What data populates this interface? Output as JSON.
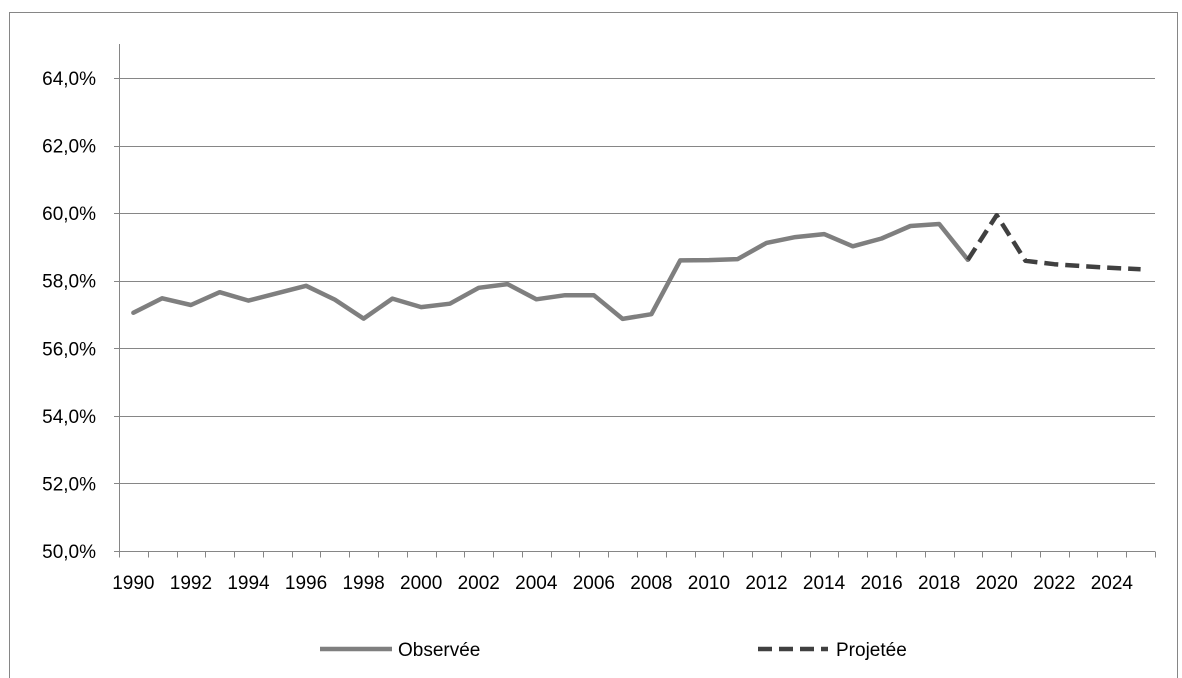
{
  "chart_data": {
    "type": "line",
    "title": "",
    "xlabel": "",
    "ylabel": "",
    "ylim": [
      0.5,
      0.64
    ],
    "y_ticks": [
      "50,0%",
      "52,0%",
      "54,0%",
      "56,0%",
      "58,0%",
      "60,0%",
      "62,0%",
      "64,0%"
    ],
    "y_tick_values": [
      0.5,
      0.52,
      0.54,
      0.56,
      0.58,
      0.6,
      0.62,
      0.64
    ],
    "x_tick_labels": [
      "1990",
      "1992",
      "1994",
      "1996",
      "1998",
      "2000",
      "2002",
      "2004",
      "2006",
      "2008",
      "2010",
      "2012",
      "2014",
      "2016",
      "2018",
      "2020",
      "2022",
      "2024"
    ],
    "x": [
      1990,
      1991,
      1992,
      1993,
      1994,
      1995,
      1996,
      1997,
      1998,
      1999,
      2000,
      2001,
      2002,
      2003,
      2004,
      2005,
      2006,
      2007,
      2008,
      2009,
      2010,
      2011,
      2012,
      2013,
      2014,
      2015,
      2016,
      2017,
      2018,
      2019,
      2020,
      2021,
      2022,
      2023,
      2024,
      2025
    ],
    "grid": true,
    "legend_position": "bottom",
    "series": [
      {
        "name": "Observée",
        "style": "solid",
        "color": "#7f7f7f",
        "points": [
          [
            1990,
            0.5705
          ],
          [
            1991,
            0.5748
          ],
          [
            1992,
            0.5728
          ],
          [
            1993,
            0.5766
          ],
          [
            1994,
            0.5741
          ],
          [
            1995,
            0.5763
          ],
          [
            1996,
            0.5785
          ],
          [
            1997,
            0.5744
          ],
          [
            1998,
            0.5688
          ],
          [
            1999,
            0.5747
          ],
          [
            2000,
            0.5722
          ],
          [
            2001,
            0.5732
          ],
          [
            2002,
            0.5779
          ],
          [
            2003,
            0.579
          ],
          [
            2004,
            0.5745
          ],
          [
            2005,
            0.5757
          ],
          [
            2006,
            0.5757
          ],
          [
            2007,
            0.5687
          ],
          [
            2008,
            0.5701
          ],
          [
            2009,
            0.586
          ],
          [
            2010,
            0.5861
          ],
          [
            2011,
            0.5864
          ],
          [
            2012,
            0.5912
          ],
          [
            2013,
            0.5929
          ],
          [
            2014,
            0.5938
          ],
          [
            2015,
            0.5902
          ],
          [
            2016,
            0.5925
          ],
          [
            2017,
            0.5962
          ],
          [
            2018,
            0.5968
          ],
          [
            2019,
            0.5862
          ]
        ]
      },
      {
        "name": "Projetée",
        "style": "dashed",
        "color": "#404040",
        "points": [
          [
            2019,
            0.5862
          ],
          [
            2020,
            0.5994
          ],
          [
            2021,
            0.5859
          ],
          [
            2022,
            0.5849
          ],
          [
            2023,
            0.5843
          ],
          [
            2024,
            0.5838
          ],
          [
            2025,
            0.5834
          ]
        ]
      }
    ]
  },
  "colors": {
    "axis": "#868686",
    "grid": "#868686",
    "frame": "#868686"
  }
}
